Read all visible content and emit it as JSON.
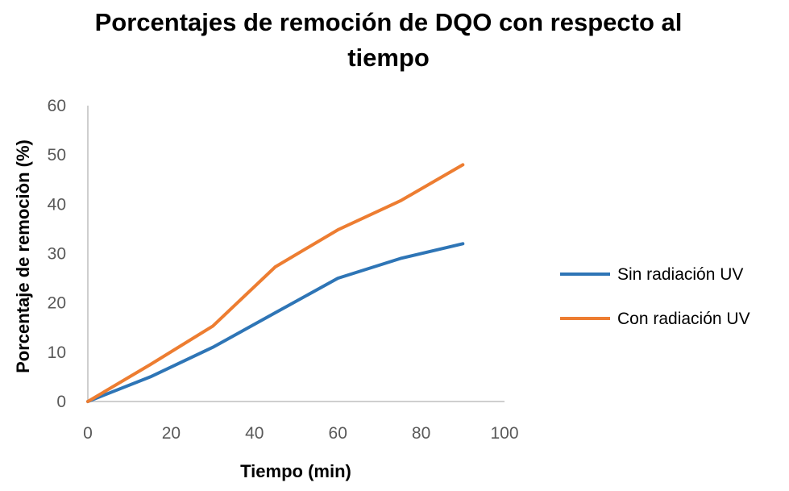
{
  "chart_data": {
    "type": "line",
    "title_lines": [
      "Porcentajes de remoción de DQO con respecto al",
      "tiempo"
    ],
    "xlabel": "Tiempo (min)",
    "ylabel": "Porcentaje de remociòn (%)",
    "xlim": [
      0,
      100
    ],
    "ylim": [
      0,
      60
    ],
    "xticks": [
      0,
      20,
      40,
      60,
      80,
      100
    ],
    "yticks": [
      0,
      10,
      20,
      30,
      40,
      50,
      60
    ],
    "grid": false,
    "legend_position": "right",
    "series": [
      {
        "name": "Sin radiación UV",
        "color": "#2E75B6",
        "x": [
          0,
          15,
          30,
          45,
          60,
          75,
          90
        ],
        "y": [
          0,
          5,
          11,
          18,
          25,
          29,
          32
        ]
      },
      {
        "name": "Con radiación UV",
        "color": "#ED7D31",
        "x": [
          0,
          15,
          30,
          45,
          60,
          75,
          90
        ],
        "y": [
          0,
          7.5,
          15.3,
          27.3,
          34.8,
          40.7,
          48
        ]
      }
    ]
  }
}
